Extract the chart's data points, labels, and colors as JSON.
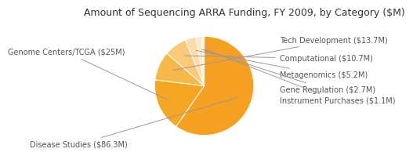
{
  "title": "Amount of Sequencing ARRA Funding, FY 2009, by Category ($M)",
  "categories": [
    "Disease Studies ($86.3M)",
    "Genome Centers/TCGA ($25M)",
    "Tech Development ($13.7M)",
    "Computational ($10.7M)",
    "Metagenomics ($5.2M)",
    "Gene Regulation ($2.7M)",
    "Instrument Purchases ($1.1M)"
  ],
  "values": [
    86.3,
    25.0,
    13.7,
    10.7,
    5.2,
    2.7,
    1.1
  ],
  "colors": [
    "#F5A020",
    "#F5A623",
    "#F7B84A",
    "#FAC97A",
    "#FCDCAA",
    "#FDE8C8",
    "#FEF4E8"
  ],
  "startangle": 90,
  "title_fontsize": 9.0,
  "label_fontsize": 7.0,
  "background_color": "#ffffff",
  "label_color": "#555555",
  "line_color": "#999999"
}
